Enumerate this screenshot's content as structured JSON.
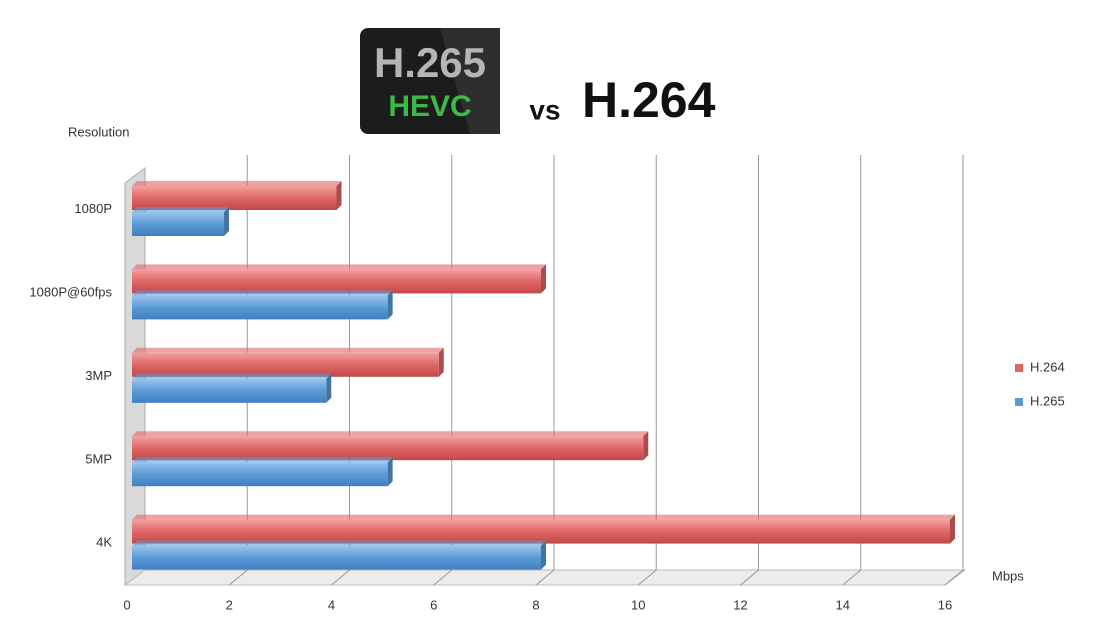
{
  "chart_data": {
    "type": "bar",
    "orientation": "horizontal",
    "logo_top": "H.265",
    "logo_bottom": "HEVC",
    "title_vs": "vs",
    "title": "H.264",
    "y_label": "Resolution",
    "x_label": "Mbps",
    "categories": [
      "1080P",
      "1080P@60fps",
      "3MP",
      "5MP",
      "4K"
    ],
    "series": [
      {
        "name": "H.264",
        "color": "#e06666",
        "values": [
          4,
          8,
          6,
          10,
          16
        ]
      },
      {
        "name": "H.265",
        "color": "#5b9bd5",
        "values": [
          1.8,
          5,
          3.8,
          5,
          8
        ]
      }
    ],
    "xlim": [
      0,
      16
    ],
    "xticks": [
      0,
      2,
      4,
      6,
      8,
      10,
      12,
      14,
      16
    ],
    "grid": true,
    "legend": "right"
  }
}
